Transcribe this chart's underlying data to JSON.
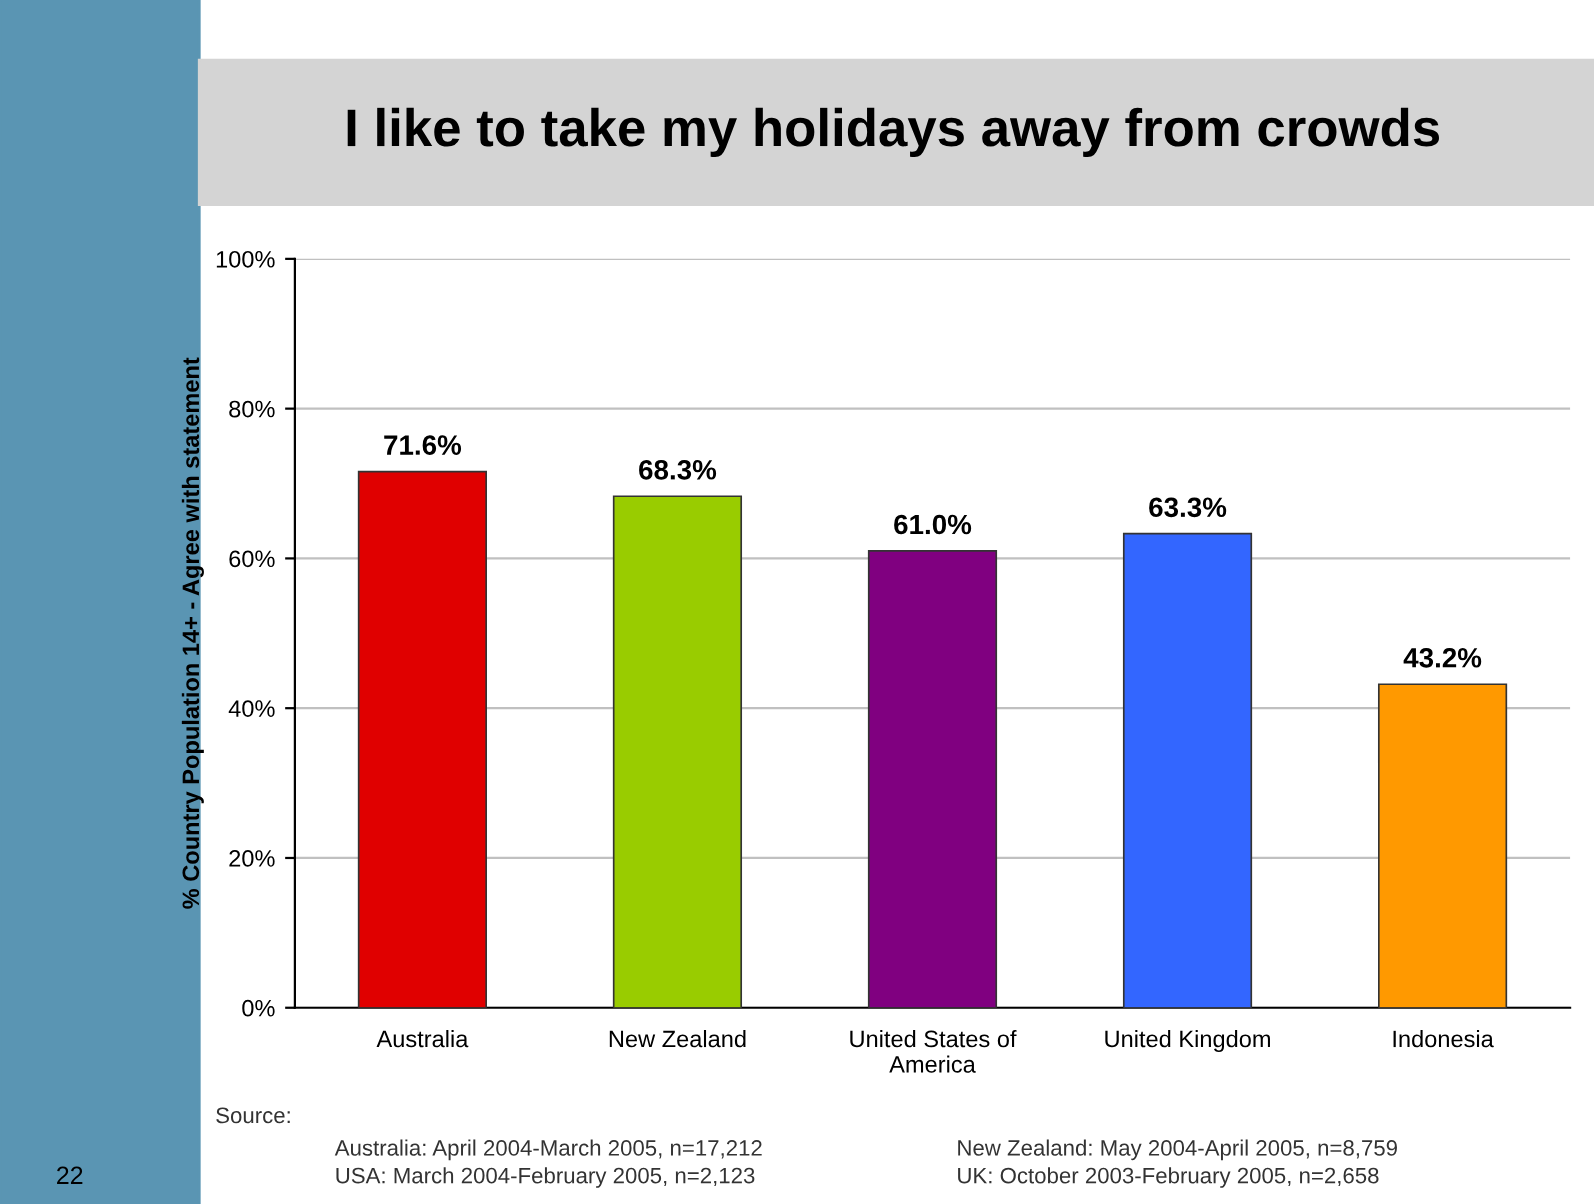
{
  "chart_data": {
    "type": "bar",
    "title": "I like to take my holidays away from crowds",
    "ylabel": "% Country Population 14+ - Agree with statement",
    "categories": [
      "Australia",
      "New Zealand",
      "United States of\nAmerica",
      "United Kingdom",
      "Indonesia"
    ],
    "values": [
      71.6,
      68.3,
      61.0,
      63.3,
      43.2
    ],
    "colors": [
      "#e00000",
      "#99cc00",
      "#800080",
      "#3366ff",
      "#ff9900"
    ],
    "value_labels": [
      "71.6%",
      "68.3%",
      "61.0%",
      "63.3%",
      "43.2%"
    ],
    "ylim": [
      0,
      100
    ],
    "yticks": [
      {
        "value": 0,
        "label": "0%"
      },
      {
        "value": 20,
        "label": "20%"
      },
      {
        "value": 40,
        "label": "40%"
      },
      {
        "value": 60,
        "label": "60%"
      },
      {
        "value": 80,
        "label": "80%"
      },
      {
        "value": 100,
        "label": "100%"
      }
    ],
    "grid": "y",
    "annotations": [
      "Source:",
      "Australia: April 2004-March 2005, n=17,212",
      "New Zealand: May 2004-April 2005, n=8,759",
      "USA: March 2004-February 2005, n=2,123",
      "UK: October 2003-February 2005, n=2,658",
      "22"
    ]
  }
}
